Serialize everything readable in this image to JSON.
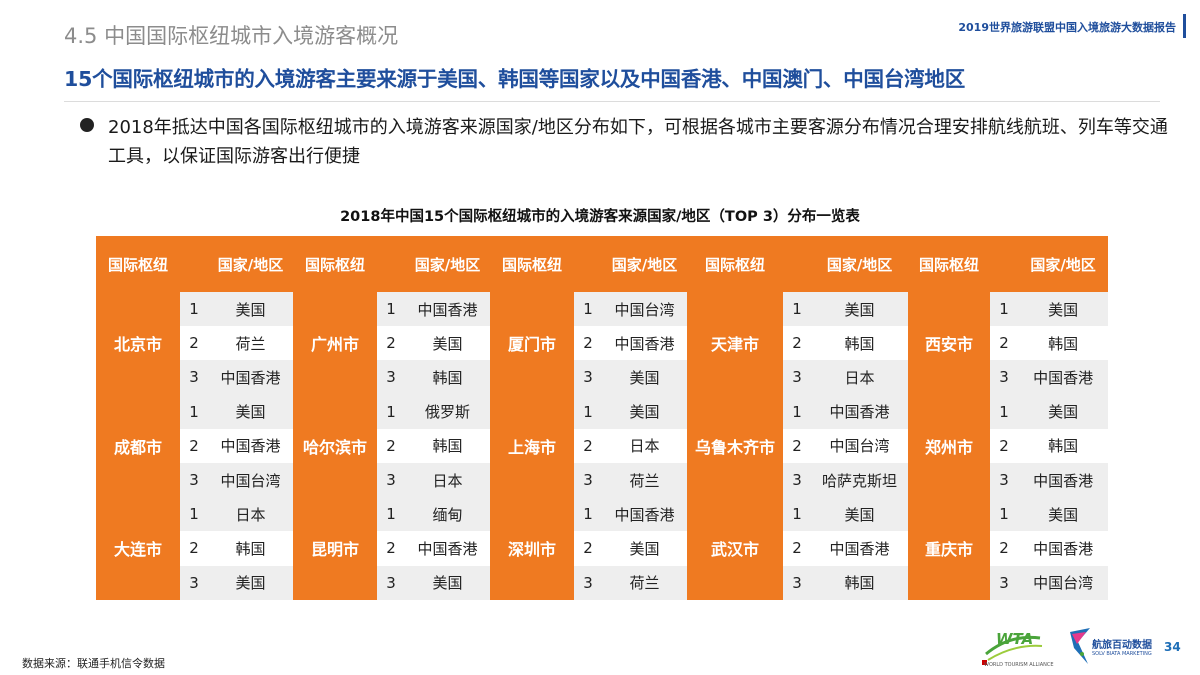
{
  "header": {
    "section_title": "4.5 中国国际枢纽城市入境游客概况",
    "report_label": "2019世界旅游联盟中国入境旅游大数据报告",
    "headline": "15个国际枢纽城市的入境游客主要来源于美国、韩国等国家以及中国香港、中国澳门、中国台湾地区"
  },
  "intro": "2018年抵达中国各国际枢纽城市的入境游客来源国家/地区分布如下，可根据各城市主要客源分布情况合理安排航线航班、列车等交通工具，以保证国际游客出行便捷",
  "table": {
    "title": "2018年中国15个国际枢纽城市的入境游客来源国家/地区（TOP 3）分布一览表",
    "header_hub": "国际枢纽",
    "header_country": "国家/地区",
    "ranks": [
      "1",
      "2",
      "3"
    ],
    "rows": [
      [
        {
          "hub": "北京市",
          "top": [
            "美国",
            "荷兰",
            "中国香港"
          ]
        },
        {
          "hub": "广州市",
          "top": [
            "中国香港",
            "美国",
            "韩国"
          ]
        },
        {
          "hub": "厦门市",
          "top": [
            "中国台湾",
            "中国香港",
            "美国"
          ]
        },
        {
          "hub": "天津市",
          "top": [
            "美国",
            "韩国",
            "日本"
          ]
        },
        {
          "hub": "西安市",
          "top": [
            "美国",
            "韩国",
            "中国香港"
          ]
        }
      ],
      [
        {
          "hub": "成都市",
          "top": [
            "美国",
            "中国香港",
            "中国台湾"
          ]
        },
        {
          "hub": "哈尔滨市",
          "top": [
            "俄罗斯",
            "韩国",
            "日本"
          ]
        },
        {
          "hub": "上海市",
          "top": [
            "美国",
            "日本",
            "荷兰"
          ]
        },
        {
          "hub": "乌鲁木齐市",
          "top": [
            "中国香港",
            "中国台湾",
            "哈萨克斯坦"
          ]
        },
        {
          "hub": "郑州市",
          "top": [
            "美国",
            "韩国",
            "中国香港"
          ]
        }
      ],
      [
        {
          "hub": "大连市",
          "top": [
            "日本",
            "韩国",
            "美国"
          ]
        },
        {
          "hub": "昆明市",
          "top": [
            "缅甸",
            "中国香港",
            "美国"
          ]
        },
        {
          "hub": "深圳市",
          "top": [
            "中国香港",
            "美国",
            "荷兰"
          ]
        },
        {
          "hub": "武汉市",
          "top": [
            "美国",
            "中国香港",
            "韩国"
          ]
        },
        {
          "hub": "重庆市",
          "top": [
            "美国",
            "中国香港",
            "中国台湾"
          ]
        }
      ]
    ]
  },
  "footer": {
    "source": "数据来源：联通手机信令数据",
    "wta_logo_text": "WTA",
    "wta_subtitle": "WORLD TOURISM ALLIANCE",
    "brand_name": "航旅百动数据",
    "brand_subtitle": "SOLV BIATA MARKETING",
    "page_number": "34"
  },
  "colors": {
    "accent_orange": "#ef7a21",
    "headline_blue": "#1f4e9c",
    "band_gray": "#eeeeee"
  },
  "icons": {
    "bullet": "bullet-icon",
    "wta": "wta-logo",
    "brand": "brand-logo"
  }
}
